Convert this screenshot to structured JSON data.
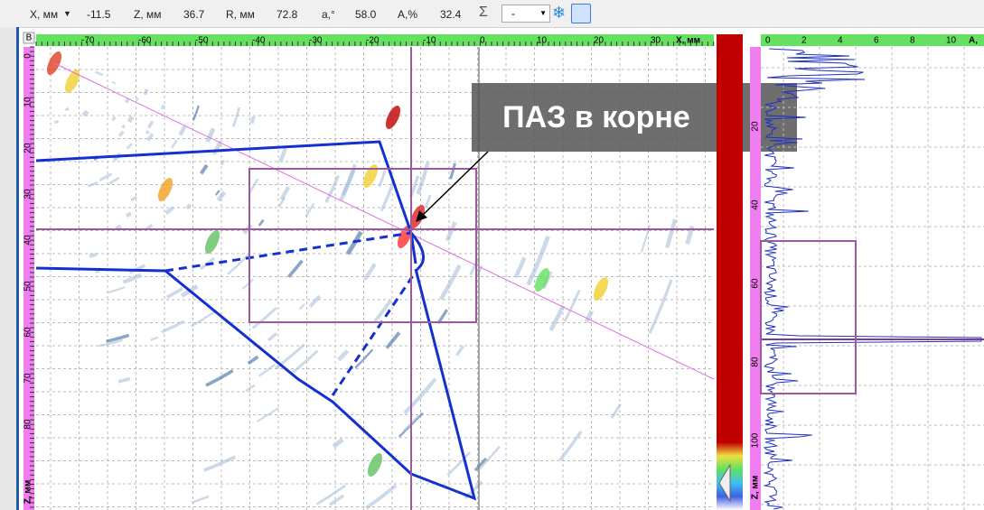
{
  "toolbar": {
    "items": [
      {
        "label": "X, мм",
        "value": "-11.5"
      },
      {
        "label": "Z, мм",
        "value": "36.7"
      },
      {
        "label": "R, мм",
        "value": "72.8"
      },
      {
        "label": "a,°",
        "value": "58.0"
      },
      {
        "label": "A,%",
        "value": "32.4"
      }
    ],
    "combo": "-"
  },
  "scan": {
    "corner": "B",
    "x_ruler": [
      "-70",
      "-60",
      "-50",
      "-40",
      "-30",
      "-20",
      "-10",
      "0",
      "10",
      "20",
      "30"
    ],
    "x_axis_label": "X, мм",
    "z_ruler": [
      "0",
      "10",
      "20",
      "30",
      "40",
      "50",
      "60",
      "70",
      "80"
    ],
    "z_axis_label": "Z, мм",
    "annotation": "ПАЗ в корне"
  },
  "ascan": {
    "top_ruler": [
      "0",
      "2",
      "4",
      "6",
      "8",
      "10"
    ],
    "top_axis_label": "A,",
    "left_ruler": [
      "20",
      "40",
      "60",
      "80",
      "100"
    ],
    "left_axis_label": "Z, мм"
  }
}
